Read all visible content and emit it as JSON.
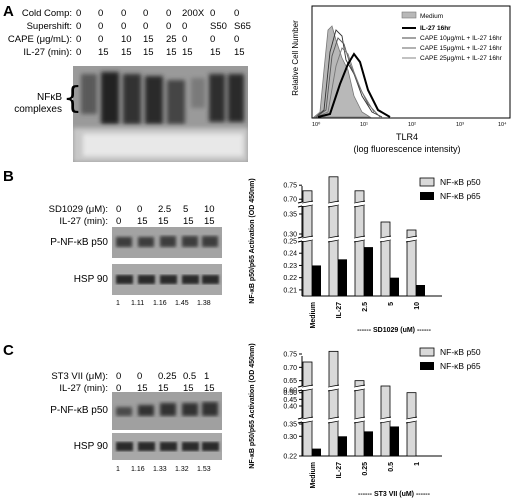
{
  "panel_a": {
    "label": "A",
    "emsa": {
      "row_labels": [
        "Cold Comp:",
        "Supershift:",
        "CAPE (μg/mL):",
        "IL-27 (min):"
      ],
      "rows": [
        [
          "0",
          "0",
          "0",
          "0",
          "0",
          "200X",
          "0",
          "0"
        ],
        [
          "0",
          "0",
          "0",
          "0",
          "0",
          "0",
          "S50",
          "S65"
        ],
        [
          "0",
          "0",
          "10",
          "15",
          "25",
          "0",
          "0",
          "0"
        ],
        [
          "0",
          "15",
          "15",
          "15",
          "15",
          "15",
          "15",
          "15"
        ]
      ],
      "complex_label_line1": "NFκB",
      "complex_label_line2": "complexes"
    },
    "flow": {
      "ylabel": "Relative Cell Number",
      "xlabel": "TLR4",
      "xlabel2": "(log fluorescence intensity)",
      "legend": [
        "Medium",
        "IL-27 16hr",
        "CAPE 10μg/mL + IL-27 16hr",
        "CAPE 15μg/mL + IL-27 16hr",
        "CAPE 25μg/mL + IL-27 16hr"
      ],
      "ticks": [
        "10⁰",
        "10¹",
        "10²",
        "10³",
        "10⁴"
      ]
    }
  },
  "panel_b": {
    "label": "B",
    "treat_labels": [
      "SD1029 (μM):",
      "IL-27 (min):"
    ],
    "treat_rows": [
      [
        "0",
        "0",
        "2.5",
        "5",
        "10"
      ],
      [
        "0",
        "15",
        "15",
        "15",
        "15"
      ]
    ],
    "blot_labels": [
      "P-NF-κB p50",
      "HSP 90"
    ],
    "quant": [
      "1",
      "1.11",
      "1.16",
      "1.45",
      "1.38"
    ]
  },
  "panel_c": {
    "label": "C",
    "treat_labels": [
      "ST3 VII (μM):",
      "IL-27 (min):"
    ],
    "treat_rows": [
      [
        "0",
        "0",
        "0.25",
        "0.5",
        "1"
      ],
      [
        "0",
        "15",
        "15",
        "15",
        "15"
      ]
    ],
    "blot_labels": [
      "P-NF-κB p50",
      "HSP 90"
    ],
    "quant": [
      "1",
      "1.16",
      "1.33",
      "1.32",
      "1.53"
    ]
  },
  "chart_data": [
    {
      "type": "bar",
      "ylabel": "NF-κB p50/p65 Activation (OD 450nm)",
      "categories": [
        "Medium",
        "IL-27",
        "2.5",
        "5",
        "10"
      ],
      "group_label": "------ SD1029  (uM) ------",
      "series": [
        {
          "name": "NF-κB p50",
          "values": [
            0.73,
            0.78,
            0.73,
            0.33,
            0.31
          ]
        },
        {
          "name": "NF-κB p65",
          "values": [
            0.23,
            0.235,
            0.245,
            0.22,
            0.214
          ]
        }
      ],
      "yticks": [
        "0.21",
        "0.22",
        "0.23",
        "0.24",
        "0.25",
        "0.30",
        "0.35",
        "0.70",
        "0.75"
      ],
      "legend_position": "top-right"
    },
    {
      "type": "bar",
      "ylabel": "NF-κB p50/p65 Activation (OD 450nm)",
      "categories": [
        "Medium",
        "IL-27",
        "0.25",
        "0.5",
        "1"
      ],
      "group_label": "------ ST3  VII  (uM) ------",
      "series": [
        {
          "name": "NF-κB p50",
          "values": [
            0.72,
            0.76,
            0.65,
            0.62,
            0.5
          ]
        },
        {
          "name": "NF-κB p65",
          "values": [
            0.25,
            0.3,
            0.32,
            0.34,
            0.222
          ]
        }
      ],
      "yticks": [
        "0.22",
        "0.30",
        "0.35",
        "0.40",
        "0.45",
        "0.50",
        "0.60",
        "0.65",
        "0.70",
        "0.75"
      ],
      "legend_position": "top-right"
    }
  ]
}
